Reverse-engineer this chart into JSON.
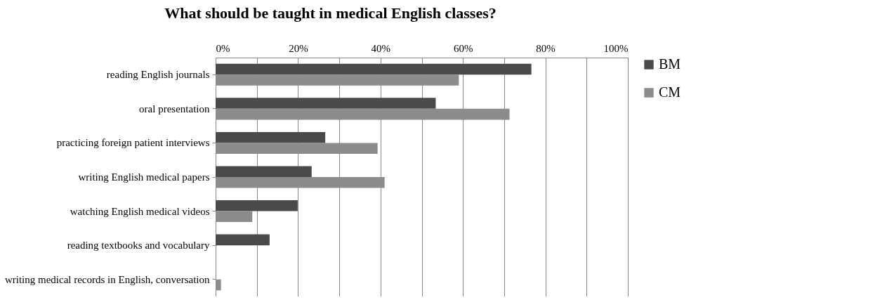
{
  "chart_data": {
    "type": "bar",
    "orientation": "horizontal",
    "title": "What should be taught in medical English classes?",
    "categories": [
      "reading English journals",
      "oral presentation",
      "practicing foreign patient interviews",
      "writing English medical papers",
      "watching English medical videos",
      "reading textbooks and vocabulary",
      "writing medical records in English, conversation"
    ],
    "series": [
      {
        "name": "BM",
        "color": "#4a4a4a",
        "values": [
          76.6,
          53.4,
          26.6,
          23.3,
          19.9,
          13.1,
          0
        ]
      },
      {
        "name": "CM",
        "color": "#8c8c8c",
        "values": [
          59,
          71.3,
          39.3,
          41,
          8.9,
          0,
          1.3
        ]
      }
    ],
    "xlim": [
      0,
      100
    ],
    "xticks": [
      {
        "value": 0,
        "label": "0%"
      },
      {
        "value": 10,
        "label": null
      },
      {
        "value": 20,
        "label": "20%"
      },
      {
        "value": 30,
        "label": null
      },
      {
        "value": 40,
        "label": "40%"
      },
      {
        "value": 50,
        "label": null
      },
      {
        "value": 60,
        "label": "60%"
      },
      {
        "value": 70,
        "label": null
      },
      {
        "value": 80,
        "label": "80%"
      },
      {
        "value": 90,
        "label": null
      },
      {
        "value": 100,
        "label": "100%"
      }
    ],
    "grid": "x",
    "legend": "right"
  }
}
